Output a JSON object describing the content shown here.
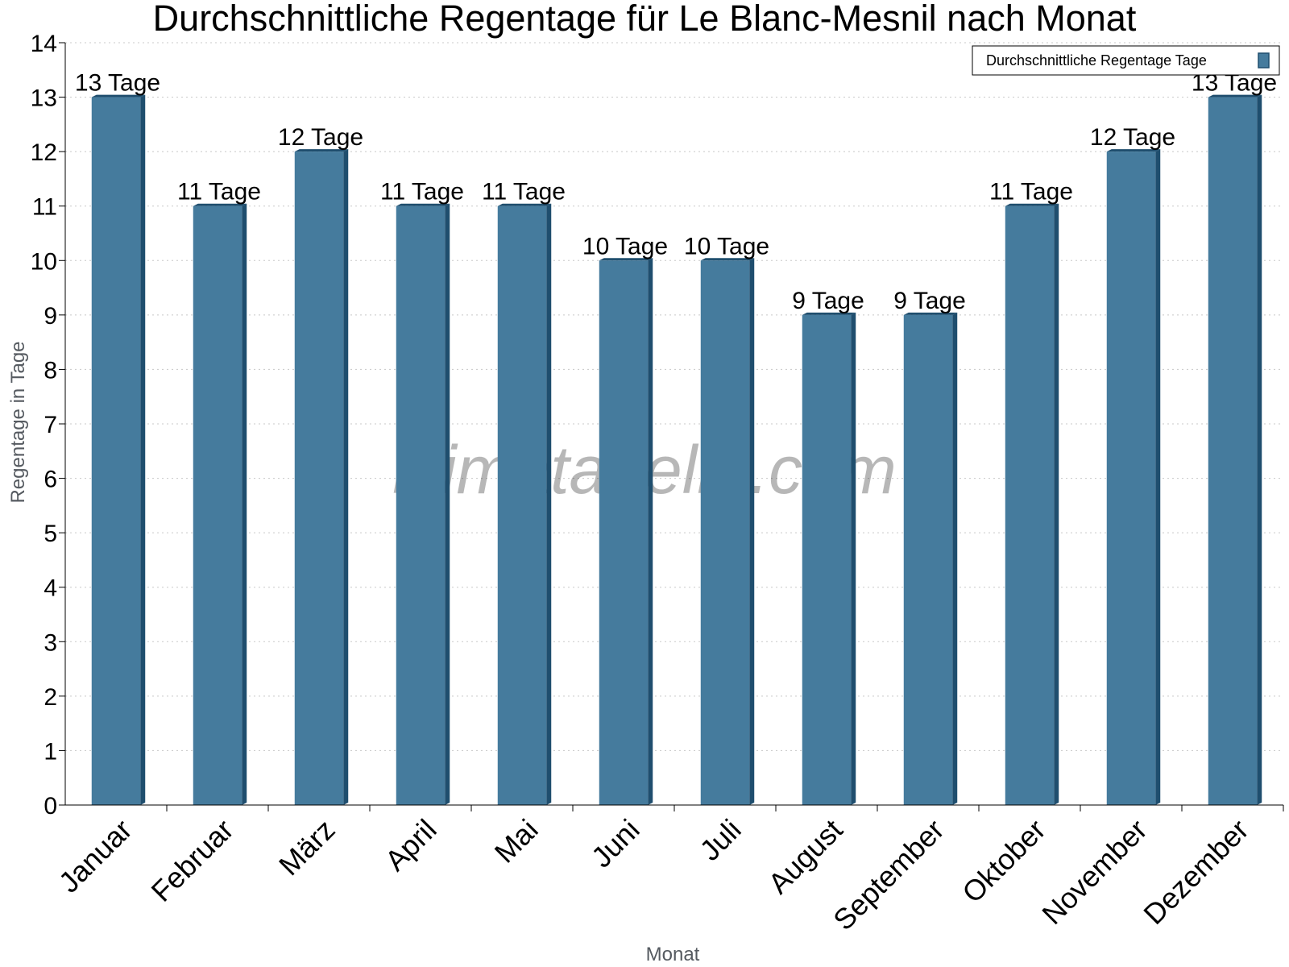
{
  "chart_data": {
    "type": "bar",
    "title": "Durchschnittliche Regentage für Le Blanc-Mesnil nach Monat",
    "xlabel": "Monat",
    "ylabel": "Regentage in Tage",
    "categories": [
      "Januar",
      "Februar",
      "März",
      "April",
      "Mai",
      "Juni",
      "Juli",
      "August",
      "September",
      "Oktober",
      "November",
      "Dezember"
    ],
    "series": [
      {
        "name": "Durchschnittliche Regentage Tage",
        "values": [
          13,
          11,
          12,
          11,
          11,
          10,
          10,
          9,
          9,
          11,
          12,
          13
        ],
        "labels": [
          "13 Tage",
          "11 Tage",
          "12 Tage",
          "11 Tage",
          "11 Tage",
          "10 Tage",
          "10 Tage",
          "9 Tage",
          "9 Tage",
          "11 Tage",
          "12 Tage",
          "13 Tage"
        ],
        "color": "#457b9d",
        "side_color": "#1f4e6e"
      }
    ],
    "ylim": [
      0,
      14
    ],
    "yticks": [
      "0",
      "1",
      "2",
      "3",
      "4",
      "5",
      "6",
      "7",
      "8",
      "9",
      "10",
      "11",
      "12",
      "13",
      "14"
    ],
    "grid": true,
    "legend_position": "top-right",
    "watermark": "klimatabelle.com"
  }
}
